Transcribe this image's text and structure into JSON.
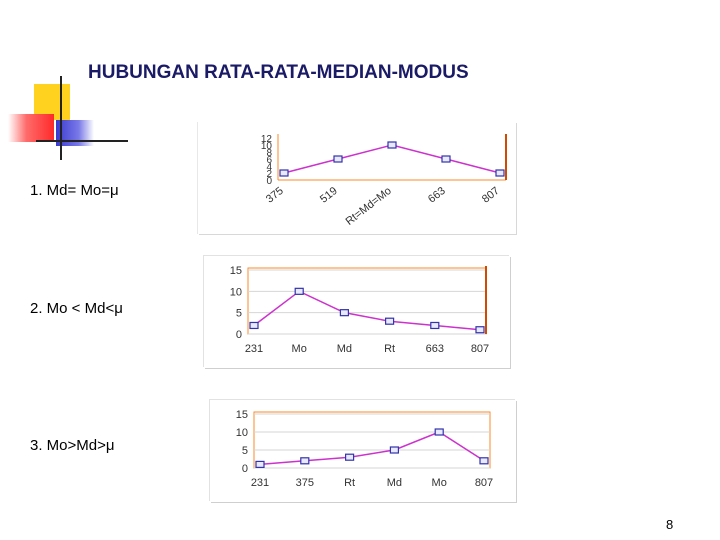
{
  "title": "HUBUNGAN RATA-RATA-MEDIAN-MODUS",
  "items": [
    {
      "label": "1.   Md= Mo=μ"
    },
    {
      "label": "2.  Mo < Md<μ"
    },
    {
      "label": "3.   Mo>Md>μ"
    }
  ],
  "page_number": "8",
  "colors": {
    "series": "#cc33cc",
    "marker": "#3333aa",
    "frame": "#ff8a2a",
    "accent_right": "#d24a00",
    "grid": "#d6d6d6"
  },
  "chart_data": [
    {
      "type": "line",
      "categories": [
        "375",
        "519",
        "Rt=Md=Mo",
        "663",
        "807"
      ],
      "values": [
        2,
        6,
        10,
        6,
        2
      ],
      "ylim": [
        0,
        12
      ],
      "yticks": [
        "12",
        "10",
        "8",
        "6",
        "4",
        "2",
        "0"
      ],
      "xlabel": "",
      "ylabel": "",
      "grid": false
    },
    {
      "type": "line",
      "categories": [
        "231",
        "Mo",
        "Md",
        "Rt",
        "663",
        "807"
      ],
      "values": [
        2,
        10,
        5,
        3,
        2,
        1
      ],
      "ylim": [
        0,
        15
      ],
      "yticks": [
        "15",
        "10",
        "5",
        "0"
      ],
      "xlabel": "",
      "ylabel": "",
      "grid": true
    },
    {
      "type": "line",
      "categories": [
        "231",
        "375",
        "Rt",
        "Md",
        "Mo",
        "807"
      ],
      "values": [
        1,
        2,
        3,
        5,
        10,
        2
      ],
      "ylim": [
        0,
        15
      ],
      "yticks": [
        "15",
        "10",
        "5",
        "0"
      ],
      "xlabel": "",
      "ylabel": "",
      "grid": true
    }
  ]
}
